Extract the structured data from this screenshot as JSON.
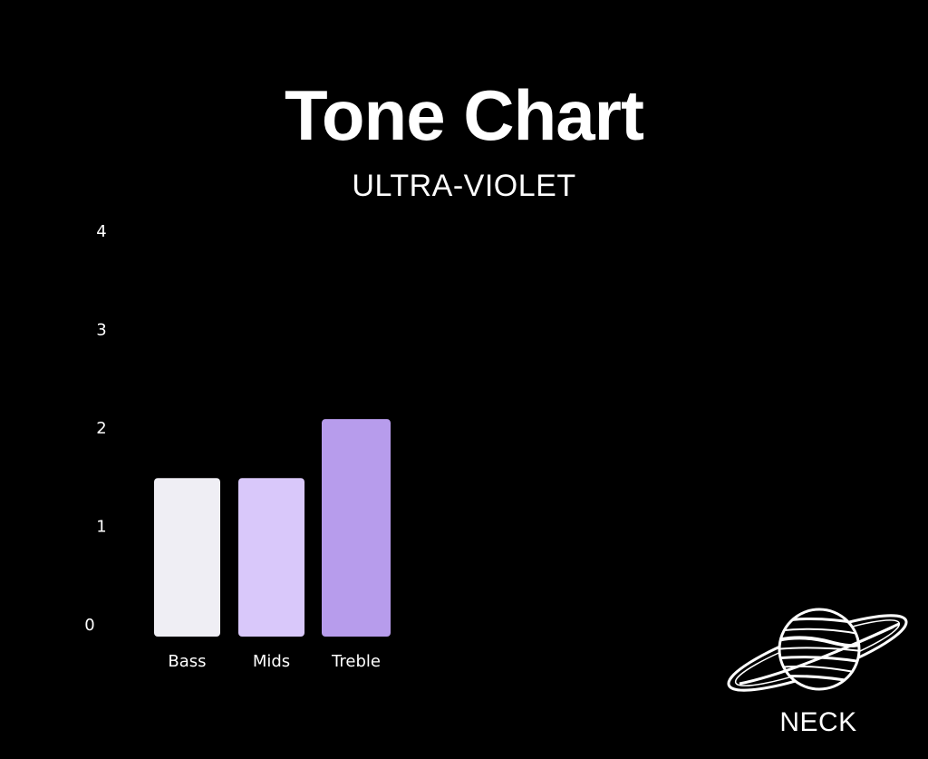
{
  "chart_data": {
    "type": "bar",
    "title": "Tone Chart",
    "subtitle": "ULTRA-VIOLET",
    "categories": [
      "Bass",
      "Mids",
      "Treble"
    ],
    "values": [
      1.5,
      1.5,
      2.1
    ],
    "ylim": [
      0,
      4
    ],
    "yticks": [
      0,
      1,
      2,
      3,
      4
    ],
    "grid": false,
    "legend": "none",
    "colors": [
      "#efeef4",
      "#d9c8fa",
      "#b79cec"
    ]
  },
  "branding": {
    "logo_icon": "planet-icon",
    "logo_text": "NECK"
  },
  "colors": {
    "background": "#000000",
    "text": "#ffffff"
  }
}
